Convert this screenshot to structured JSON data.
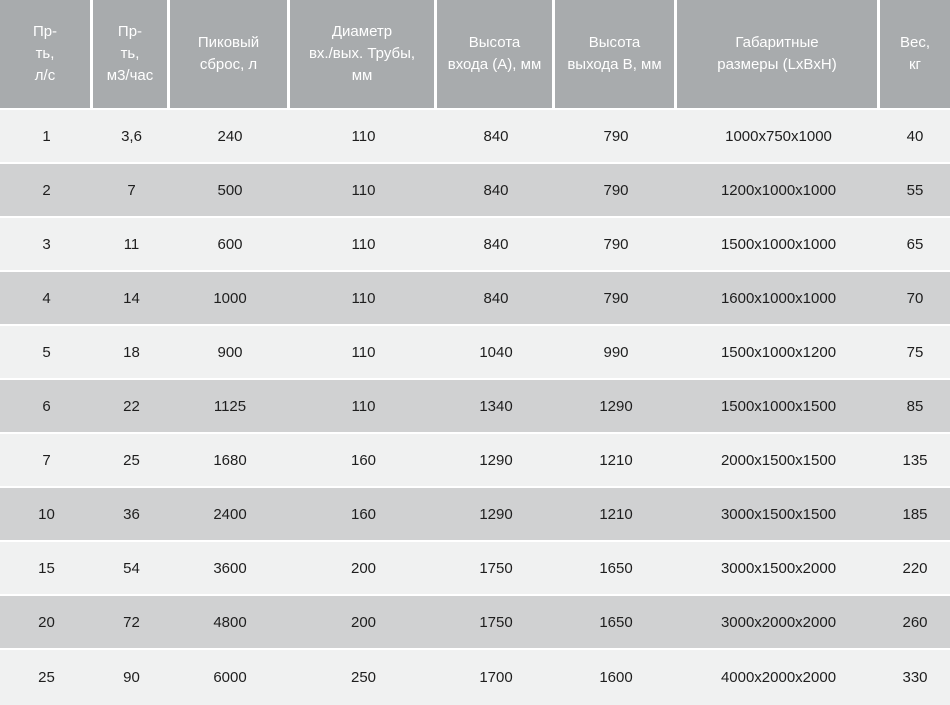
{
  "colors": {
    "header_bg": "#a8abad",
    "header_text": "#ffffff",
    "row_light": "#f0f1f1",
    "row_dark": "#d0d1d2",
    "separator": "#ffffff",
    "body_text": "#1e1e1e"
  },
  "chart_data": {
    "type": "table",
    "title": "",
    "columns": [
      "Пр-\nть,\nл/с",
      "Пр-\nть,\nм3/час",
      "Пиковый\nсброс, л",
      "Диаметр\nвх./вых. Трубы,\nмм",
      "Высота\nвхода (А), мм",
      "Высота\nвыхода В, мм",
      "Габаритные\nразмеры (LxBxH)",
      "Вес,\nкг"
    ],
    "rows": [
      [
        "1",
        "3,6",
        "240",
        "110",
        "840",
        "790",
        "1000x750x1000",
        "40"
      ],
      [
        "2",
        "7",
        "500",
        "110",
        "840",
        "790",
        "1200x1000x1000",
        "55"
      ],
      [
        "3",
        "11",
        "600",
        "110",
        "840",
        "790",
        "1500x1000x1000",
        "65"
      ],
      [
        "4",
        "14",
        "1000",
        "110",
        "840",
        "790",
        "1600x1000x1000",
        "70"
      ],
      [
        "5",
        "18",
        "900",
        "110",
        "1040",
        "990",
        "1500x1000x1200",
        "75"
      ],
      [
        "6",
        "22",
        "1125",
        "110",
        "1340",
        "1290",
        "1500x1000x1500",
        "85"
      ],
      [
        "7",
        "25",
        "1680",
        "160",
        "1290",
        "1210",
        "2000x1500x1500",
        "135"
      ],
      [
        "10",
        "36",
        "2400",
        "160",
        "1290",
        "1210",
        "3000x1500x1500",
        "185"
      ],
      [
        "15",
        "54",
        "3600",
        "200",
        "1750",
        "1650",
        "3000x1500x2000",
        "220"
      ],
      [
        "20",
        "72",
        "4800",
        "200",
        "1750",
        "1650",
        "3000x2000x2000",
        "260"
      ],
      [
        "25",
        "90",
        "6000",
        "250",
        "1700",
        "1600",
        "4000x2000x2000",
        "330"
      ]
    ]
  }
}
